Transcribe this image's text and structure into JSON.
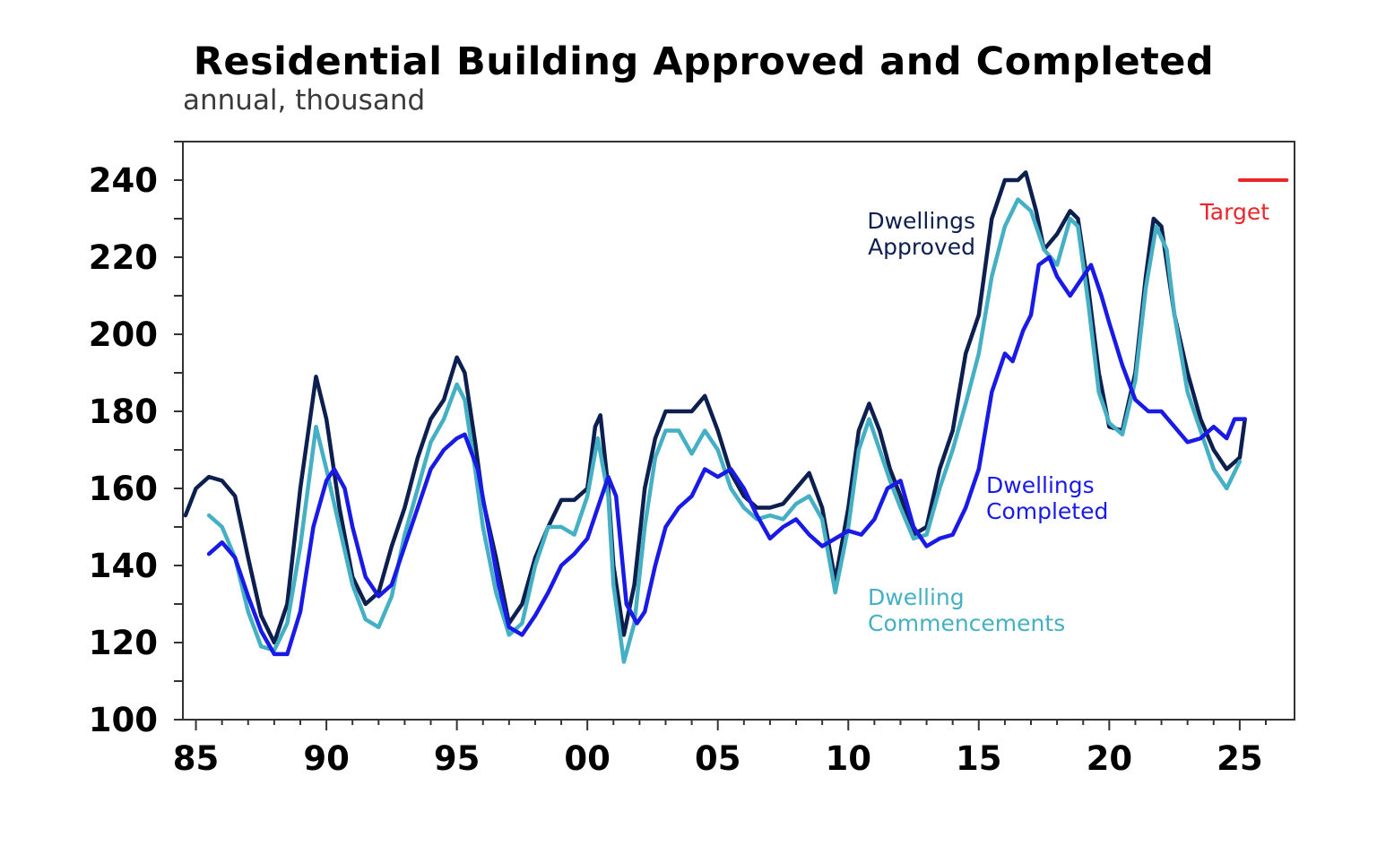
{
  "chart_data": {
    "type": "line",
    "title": "Residential Building Approved and Completed",
    "subtitle": "annual, thousand",
    "xlabel": "",
    "ylabel": "",
    "xlim": [
      1984.5,
      2027.1
    ],
    "ylim": [
      100,
      250
    ],
    "yticks": [
      100,
      120,
      140,
      160,
      180,
      200,
      220,
      240
    ],
    "ytick_labels": [
      "100",
      "120",
      "140",
      "160",
      "180",
      "200",
      "220",
      "240"
    ],
    "xticks": [
      1985,
      1990,
      1995,
      2000,
      2005,
      2010,
      2015,
      2020,
      2025
    ],
    "xtick_labels": [
      "85",
      "90",
      "95",
      "00",
      "05",
      "10",
      "15",
      "20",
      "25"
    ],
    "grid": false,
    "legend": "none",
    "series": [
      {
        "name": "Dwellings Approved",
        "color": "#0d1f4e",
        "label_lines": [
          "Dwellings",
          "Approved"
        ],
        "points": [
          [
            1984.6,
            153
          ],
          [
            1985.0,
            160
          ],
          [
            1985.5,
            163
          ],
          [
            1986.0,
            162
          ],
          [
            1986.5,
            158
          ],
          [
            1987.0,
            142
          ],
          [
            1987.5,
            127
          ],
          [
            1988.0,
            120
          ],
          [
            1988.5,
            130
          ],
          [
            1989.0,
            160
          ],
          [
            1989.6,
            189
          ],
          [
            1990.0,
            178
          ],
          [
            1990.5,
            155
          ],
          [
            1991.0,
            137
          ],
          [
            1991.5,
            130
          ],
          [
            1992.0,
            133
          ],
          [
            1992.5,
            145
          ],
          [
            1993.0,
            155
          ],
          [
            1993.5,
            168
          ],
          [
            1994.0,
            178
          ],
          [
            1994.5,
            183
          ],
          [
            1995.0,
            194
          ],
          [
            1995.3,
            190
          ],
          [
            1995.7,
            172
          ],
          [
            1996.0,
            157
          ],
          [
            1996.5,
            142
          ],
          [
            1997.0,
            125
          ],
          [
            1997.5,
            130
          ],
          [
            1998.0,
            142
          ],
          [
            1998.5,
            150
          ],
          [
            1999.0,
            157
          ],
          [
            1999.5,
            157
          ],
          [
            2000.0,
            160
          ],
          [
            2000.3,
            176
          ],
          [
            2000.5,
            179
          ],
          [
            2000.8,
            160
          ],
          [
            2001.0,
            140
          ],
          [
            2001.4,
            122
          ],
          [
            2001.8,
            135
          ],
          [
            2002.2,
            160
          ],
          [
            2002.6,
            173
          ],
          [
            2003.0,
            180
          ],
          [
            2003.5,
            180
          ],
          [
            2004.0,
            180
          ],
          [
            2004.5,
            184
          ],
          [
            2005.0,
            175
          ],
          [
            2005.5,
            164
          ],
          [
            2006.0,
            158
          ],
          [
            2006.5,
            155
          ],
          [
            2007.0,
            155
          ],
          [
            2007.5,
            156
          ],
          [
            2008.0,
            160
          ],
          [
            2008.5,
            164
          ],
          [
            2009.0,
            155
          ],
          [
            2009.5,
            136
          ],
          [
            2010.0,
            155
          ],
          [
            2010.4,
            175
          ],
          [
            2010.8,
            182
          ],
          [
            2011.2,
            175
          ],
          [
            2011.6,
            165
          ],
          [
            2012.0,
            158
          ],
          [
            2012.5,
            148
          ],
          [
            2013.0,
            150
          ],
          [
            2013.5,
            165
          ],
          [
            2014.0,
            175
          ],
          [
            2014.5,
            195
          ],
          [
            2015.0,
            205
          ],
          [
            2015.5,
            230
          ],
          [
            2016.0,
            240
          ],
          [
            2016.5,
            240
          ],
          [
            2016.8,
            242
          ],
          [
            2017.2,
            232
          ],
          [
            2017.5,
            222
          ],
          [
            2018.0,
            226
          ],
          [
            2018.5,
            232
          ],
          [
            2018.8,
            230
          ],
          [
            2019.2,
            212
          ],
          [
            2019.6,
            190
          ],
          [
            2020.0,
            176
          ],
          [
            2020.5,
            175
          ],
          [
            2021.0,
            190
          ],
          [
            2021.4,
            215
          ],
          [
            2021.7,
            230
          ],
          [
            2022.0,
            228
          ],
          [
            2022.5,
            205
          ],
          [
            2023.0,
            190
          ],
          [
            2023.5,
            178
          ],
          [
            2024.0,
            170
          ],
          [
            2024.5,
            165
          ],
          [
            2025.0,
            168
          ],
          [
            2025.2,
            178
          ]
        ]
      },
      {
        "name": "Dwelling Commencements",
        "color": "#45b0c4",
        "label_lines": [
          "Dwelling",
          "Commencements"
        ],
        "points": [
          [
            1985.5,
            153
          ],
          [
            1986.0,
            150
          ],
          [
            1986.5,
            142
          ],
          [
            1987.0,
            128
          ],
          [
            1987.5,
            119
          ],
          [
            1988.0,
            118
          ],
          [
            1988.5,
            125
          ],
          [
            1989.0,
            145
          ],
          [
            1989.6,
            176
          ],
          [
            1990.0,
            165
          ],
          [
            1990.5,
            150
          ],
          [
            1991.0,
            135
          ],
          [
            1991.5,
            126
          ],
          [
            1992.0,
            124
          ],
          [
            1992.5,
            132
          ],
          [
            1993.0,
            148
          ],
          [
            1993.5,
            160
          ],
          [
            1994.0,
            172
          ],
          [
            1994.5,
            178
          ],
          [
            1995.0,
            187
          ],
          [
            1995.3,
            183
          ],
          [
            1995.7,
            165
          ],
          [
            1996.0,
            150
          ],
          [
            1996.5,
            133
          ],
          [
            1997.0,
            122
          ],
          [
            1997.5,
            125
          ],
          [
            1998.0,
            140
          ],
          [
            1998.5,
            150
          ],
          [
            1999.0,
            150
          ],
          [
            1999.5,
            148
          ],
          [
            2000.0,
            158
          ],
          [
            2000.4,
            173
          ],
          [
            2000.8,
            158
          ],
          [
            2001.0,
            135
          ],
          [
            2001.4,
            115
          ],
          [
            2001.8,
            125
          ],
          [
            2002.2,
            150
          ],
          [
            2002.6,
            168
          ],
          [
            2003.0,
            175
          ],
          [
            2003.5,
            175
          ],
          [
            2004.0,
            169
          ],
          [
            2004.5,
            175
          ],
          [
            2005.0,
            170
          ],
          [
            2005.5,
            160
          ],
          [
            2006.0,
            155
          ],
          [
            2006.5,
            152
          ],
          [
            2007.0,
            153
          ],
          [
            2007.5,
            152
          ],
          [
            2008.0,
            156
          ],
          [
            2008.5,
            158
          ],
          [
            2009.0,
            152
          ],
          [
            2009.5,
            133
          ],
          [
            2010.0,
            150
          ],
          [
            2010.4,
            170
          ],
          [
            2010.8,
            178
          ],
          [
            2011.2,
            170
          ],
          [
            2011.6,
            162
          ],
          [
            2012.0,
            155
          ],
          [
            2012.5,
            147
          ],
          [
            2013.0,
            148
          ],
          [
            2013.5,
            160
          ],
          [
            2014.0,
            170
          ],
          [
            2014.5,
            182
          ],
          [
            2015.0,
            195
          ],
          [
            2015.5,
            215
          ],
          [
            2016.0,
            228
          ],
          [
            2016.5,
            235
          ],
          [
            2017.0,
            232
          ],
          [
            2017.5,
            222
          ],
          [
            2018.0,
            218
          ],
          [
            2018.5,
            230
          ],
          [
            2018.8,
            228
          ],
          [
            2019.2,
            208
          ],
          [
            2019.6,
            185
          ],
          [
            2020.0,
            177
          ],
          [
            2020.5,
            174
          ],
          [
            2021.0,
            188
          ],
          [
            2021.4,
            212
          ],
          [
            2021.8,
            228
          ],
          [
            2022.2,
            222
          ],
          [
            2022.5,
            205
          ],
          [
            2023.0,
            185
          ],
          [
            2023.5,
            175
          ],
          [
            2024.0,
            165
          ],
          [
            2024.5,
            160
          ],
          [
            2025.0,
            167
          ]
        ]
      },
      {
        "name": "Dwellings Completed",
        "color": "#1a1ae6",
        "label_lines": [
          "Dwellings",
          "Completed"
        ],
        "points": [
          [
            1985.5,
            143
          ],
          [
            1986.0,
            146
          ],
          [
            1986.5,
            142
          ],
          [
            1987.0,
            132
          ],
          [
            1987.5,
            123
          ],
          [
            1988.0,
            117
          ],
          [
            1988.5,
            117
          ],
          [
            1989.0,
            128
          ],
          [
            1989.5,
            150
          ],
          [
            1990.0,
            162
          ],
          [
            1990.3,
            165
          ],
          [
            1990.7,
            160
          ],
          [
            1991.0,
            150
          ],
          [
            1991.5,
            137
          ],
          [
            1992.0,
            132
          ],
          [
            1992.5,
            135
          ],
          [
            1993.0,
            145
          ],
          [
            1993.5,
            155
          ],
          [
            1994.0,
            165
          ],
          [
            1994.5,
            170
          ],
          [
            1995.0,
            173
          ],
          [
            1995.3,
            174
          ],
          [
            1995.8,
            165
          ],
          [
            1996.2,
            150
          ],
          [
            1996.6,
            135
          ],
          [
            1997.0,
            124
          ],
          [
            1997.5,
            122
          ],
          [
            1998.0,
            127
          ],
          [
            1998.5,
            133
          ],
          [
            1999.0,
            140
          ],
          [
            1999.5,
            143
          ],
          [
            2000.0,
            147
          ],
          [
            2000.4,
            155
          ],
          [
            2000.8,
            163
          ],
          [
            2001.1,
            158
          ],
          [
            2001.5,
            130
          ],
          [
            2001.9,
            125
          ],
          [
            2002.2,
            128
          ],
          [
            2002.6,
            140
          ],
          [
            2003.0,
            150
          ],
          [
            2003.5,
            155
          ],
          [
            2004.0,
            158
          ],
          [
            2004.5,
            165
          ],
          [
            2005.0,
            163
          ],
          [
            2005.5,
            165
          ],
          [
            2006.0,
            160
          ],
          [
            2006.5,
            153
          ],
          [
            2007.0,
            147
          ],
          [
            2007.5,
            150
          ],
          [
            2008.0,
            152
          ],
          [
            2008.5,
            148
          ],
          [
            2009.0,
            145
          ],
          [
            2009.5,
            147
          ],
          [
            2010.0,
            149
          ],
          [
            2010.5,
            148
          ],
          [
            2011.0,
            152
          ],
          [
            2011.5,
            160
          ],
          [
            2012.0,
            162
          ],
          [
            2012.5,
            150
          ],
          [
            2013.0,
            145
          ],
          [
            2013.5,
            147
          ],
          [
            2014.0,
            148
          ],
          [
            2014.5,
            155
          ],
          [
            2015.0,
            165
          ],
          [
            2015.5,
            185
          ],
          [
            2016.0,
            195
          ],
          [
            2016.3,
            193
          ],
          [
            2016.7,
            201
          ],
          [
            2017.0,
            205
          ],
          [
            2017.3,
            218
          ],
          [
            2017.7,
            220
          ],
          [
            2018.0,
            215
          ],
          [
            2018.5,
            210
          ],
          [
            2019.0,
            215
          ],
          [
            2019.3,
            218
          ],
          [
            2019.7,
            210
          ],
          [
            2020.0,
            203
          ],
          [
            2020.5,
            192
          ],
          [
            2021.0,
            183
          ],
          [
            2021.5,
            180
          ],
          [
            2022.0,
            180
          ],
          [
            2022.5,
            176
          ],
          [
            2023.0,
            172
          ],
          [
            2023.5,
            173
          ],
          [
            2024.0,
            176
          ],
          [
            2024.5,
            173
          ],
          [
            2024.8,
            178
          ],
          [
            2025.2,
            178
          ]
        ]
      },
      {
        "name": "Target",
        "color": "#e8262c",
        "label_lines": [
          "Target"
        ],
        "points": [
          [
            2025.0,
            240
          ],
          [
            2026.8,
            240
          ]
        ]
      }
    ]
  }
}
